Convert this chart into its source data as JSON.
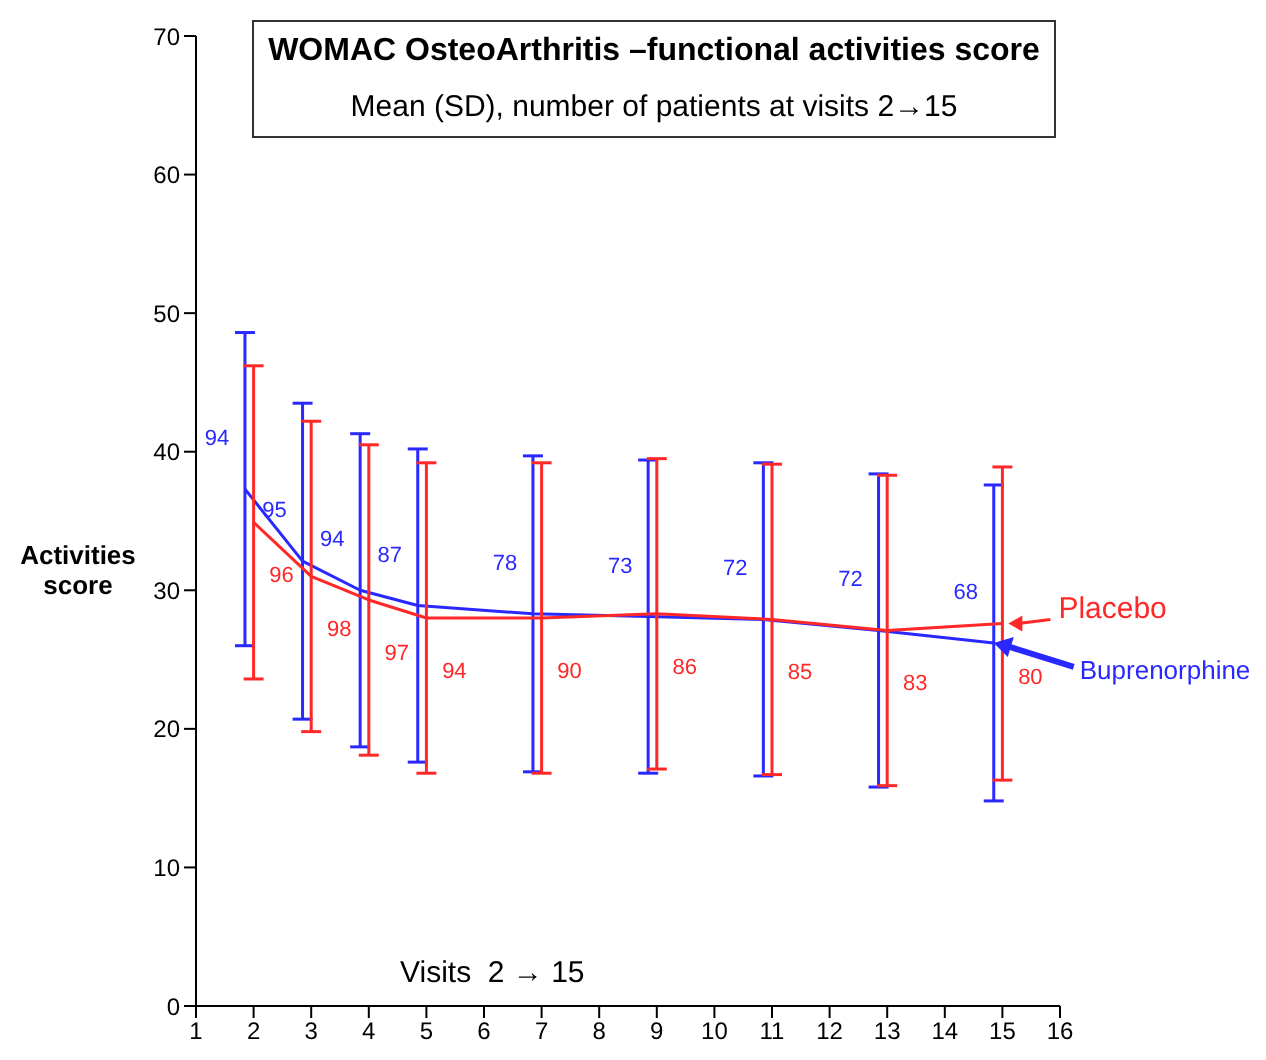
{
  "chart_data": {
    "type": "line",
    "title": "WOMAC OsteoArthritis –functional activities score",
    "subtitle": "Mean (SD), number of patients at visits 2→15",
    "ylabel": "Activities score",
    "legend": "right",
    "annotations": [
      "Visits  2 → 15",
      {
        "text": "94",
        "x": 1.85,
        "y": 37.3
      },
      {
        "text": "95",
        "x": 2.85,
        "y": 32.1
      },
      {
        "text": "94",
        "x": 3.85,
        "y": 30.0
      },
      {
        "text": "87",
        "x": 4.85,
        "y": 28.9
      },
      {
        "text": "78",
        "x": 6.85,
        "y": 28.3
      },
      {
        "text": "73",
        "x": 8.85,
        "y": 28.1
      },
      {
        "text": "72",
        "x": 10.85,
        "y": 27.9
      },
      {
        "text": "72",
        "x": 12.85,
        "y": 27.1
      },
      {
        "text": "68",
        "x": 14.85,
        "y": 26.2
      },
      {
        "text": "96",
        "x": 2,
        "y": 34.9
      },
      {
        "text": "98",
        "x": 3,
        "y": 31.0
      },
      {
        "text": "97",
        "x": 4,
        "y": 29.3
      },
      {
        "text": "94",
        "x": 5,
        "y": 28.0
      },
      {
        "text": "90",
        "x": 7,
        "y": 28.0
      },
      {
        "text": "86",
        "x": 9,
        "y": 28.3
      },
      {
        "text": "85",
        "x": 11,
        "y": 27.9
      },
      {
        "text": "83",
        "x": 13,
        "y": 27.1
      },
      {
        "text": "80",
        "x": 15,
        "y": 27.6
      }
    ],
    "xlim": [
      1,
      16
    ],
    "xticks": [
      1,
      2,
      3,
      4,
      5,
      6,
      7,
      8,
      9,
      10,
      11,
      12,
      13,
      14,
      15,
      16
    ],
    "ylim": [
      0,
      70
    ],
    "yticks": [
      0,
      10,
      20,
      30,
      40,
      50,
      60,
      70
    ],
    "series": [
      {
        "name": "Buprenorphine",
        "color": "#2828ff",
        "x": [
          1.85,
          2.85,
          3.85,
          4.85,
          6.85,
          8.85,
          10.85,
          12.85,
          14.85
        ],
        "values": [
          37.3,
          32.1,
          30.0,
          28.9,
          28.3,
          28.1,
          27.9,
          27.1,
          26.2
        ],
        "errors": [
          11.3,
          11.4,
          11.3,
          11.3,
          11.4,
          11.3,
          11.3,
          11.3,
          11.4
        ]
      },
      {
        "name": "Placebo",
        "color": "#ff2828",
        "x": [
          2,
          3,
          4,
          5,
          7,
          9,
          11,
          13,
          15
        ],
        "values": [
          34.9,
          31.0,
          29.3,
          28.0,
          28.0,
          28.3,
          27.9,
          27.1,
          27.6
        ],
        "errors": [
          11.3,
          11.2,
          11.2,
          11.2,
          11.2,
          11.2,
          11.2,
          11.2,
          11.3
        ]
      }
    ]
  }
}
